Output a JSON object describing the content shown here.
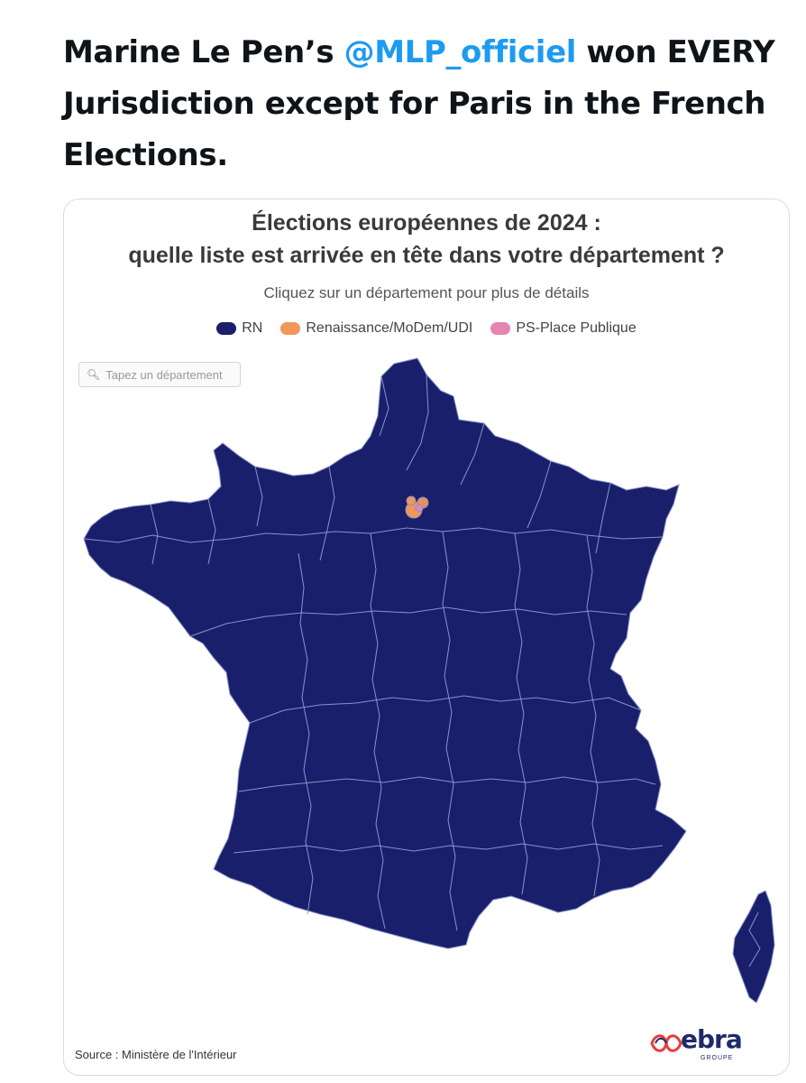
{
  "tweet": {
    "text_before": "Marine Le Pen’s ",
    "mention": "@MLP_officiel",
    "text_after": " won EVERY Jurisdiction except for Paris in the French Elections."
  },
  "map": {
    "title_line1": "Élections européennes de 2024 :",
    "title_line2": "quelle liste est arrivée en tête dans votre département ?",
    "subtitle": "Cliquez sur un département pour plus de détails",
    "legend": [
      {
        "label": "RN",
        "color": "#1a1f6b"
      },
      {
        "label": "Renaissance/MoDem/UDI",
        "color": "#f0975a"
      },
      {
        "label": "PS-Place Publique",
        "color": "#e486b0"
      }
    ],
    "search_placeholder": "Tapez un département",
    "source": "Source : Ministère de l'Intérieur",
    "logo_text": "ebra",
    "logo_sub": "GROUPE",
    "colors": {
      "rn": "#1a1f6b",
      "renaissance": "#f0975a",
      "ps": "#e486b0",
      "border": "#8a92c8"
    }
  }
}
